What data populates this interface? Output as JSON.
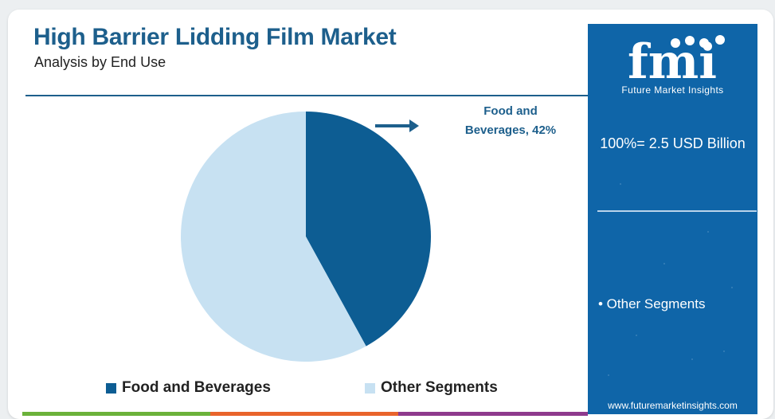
{
  "header": {
    "title": "High Barrier Lidding Film Market",
    "subtitle": "Analysis by End Use"
  },
  "callout": {
    "line1": "Food and",
    "line2": "Beverages, 42%"
  },
  "colors": {
    "brand": "#1d5f8c",
    "food_and_beverages": "#0d5d93",
    "other_segments": "#c7e1f2",
    "side_panel": "#0f65a8",
    "bar_green": "#6bb23a",
    "bar_orange": "#e9642b",
    "bar_purple": "#8e3a8d"
  },
  "side_panel": {
    "logo_letters": "fmi",
    "logo_text": "Future Market Insights",
    "total": "100%= 2.5 USD Billion",
    "item": "• Other Segments",
    "website": "www.futuremarketinsights.com"
  },
  "chart_data": {
    "type": "pie",
    "categories": [
      "Food and Beverages",
      "Other Segments"
    ],
    "values": [
      42,
      58
    ],
    "unit": "%",
    "legend_position": "bottom",
    "annotations": [
      "Food and Beverages, 42%"
    ]
  }
}
